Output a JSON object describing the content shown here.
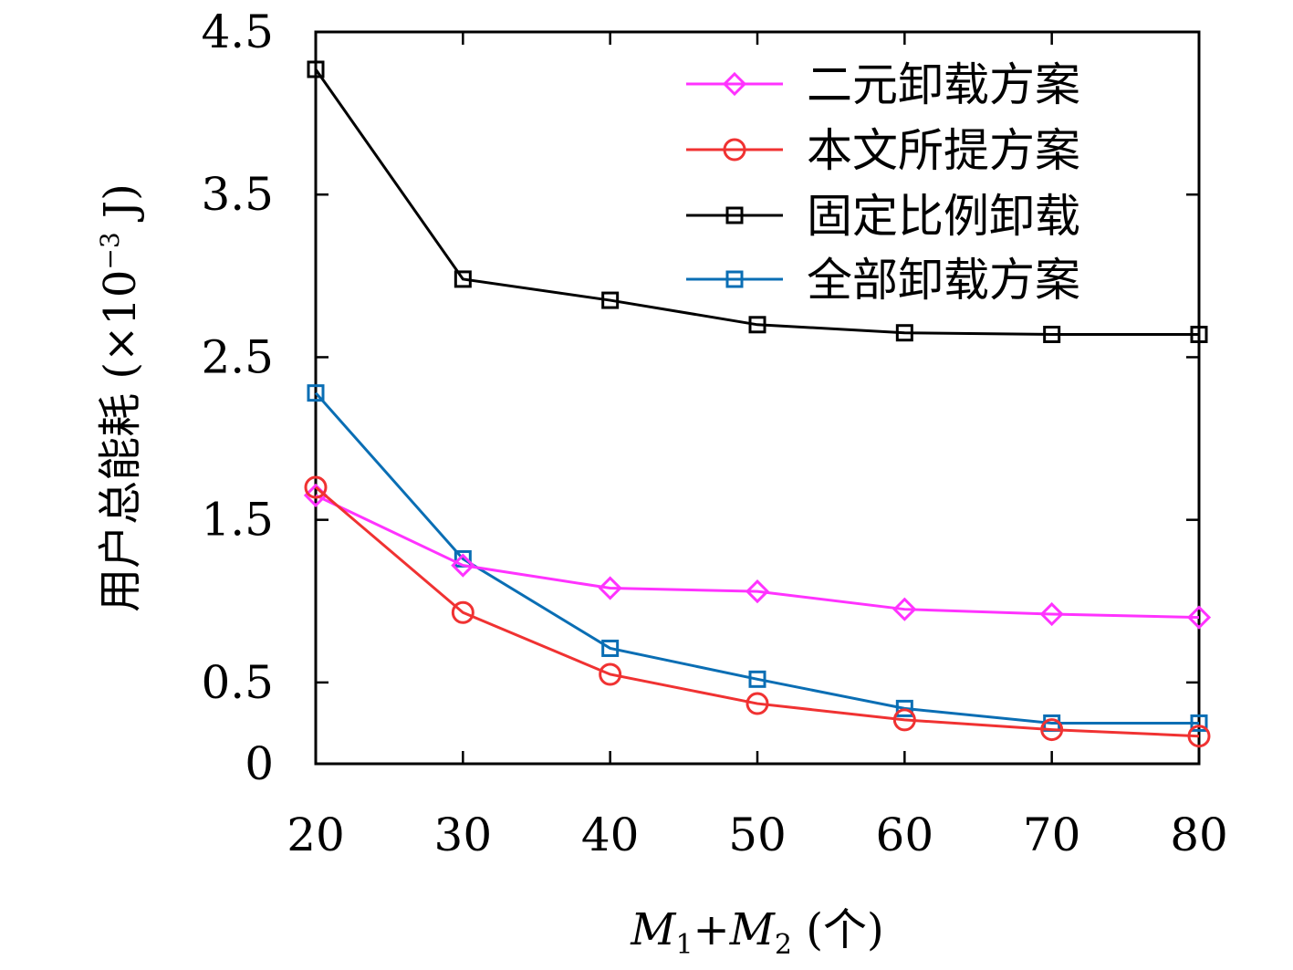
{
  "chart_data": {
    "type": "line",
    "x": [
      20,
      30,
      40,
      50,
      60,
      70,
      80
    ],
    "xticks": [
      "20",
      "30",
      "40",
      "50",
      "60",
      "70",
      "80"
    ],
    "yticks": [
      "0",
      "0.5",
      "1.5",
      "2.5",
      "3.5",
      "4.5"
    ],
    "ytick_values": [
      0,
      0.5,
      1.5,
      2.5,
      3.5,
      4.5
    ],
    "xlim": [
      20,
      80
    ],
    "ylim": [
      0,
      4.5
    ],
    "xlabel_parts": {
      "m1": "M",
      "sub1": "1",
      "plus": "+",
      "m2": "M",
      "sub2": "2",
      "unit": " (个)"
    },
    "ylabel_parts": {
      "main": "用户总能耗 (×10",
      "exp": "−3",
      "unit": " J)"
    },
    "legend_position": "top-right",
    "grid": false,
    "series": [
      {
        "name": "二元卸载方案",
        "color": "#ff33ff",
        "marker": "diamond",
        "values": [
          1.65,
          1.22,
          1.08,
          1.06,
          0.95,
          0.92,
          0.9
        ]
      },
      {
        "name": "本文所提方案",
        "color": "#f03232",
        "marker": "circle",
        "values": [
          1.7,
          0.93,
          0.55,
          0.37,
          0.27,
          0.21,
          0.17
        ]
      },
      {
        "name": "固定比例卸载",
        "color": "#000000",
        "marker": "square",
        "values": [
          4.27,
          2.98,
          2.85,
          2.7,
          2.65,
          2.64,
          2.64
        ]
      },
      {
        "name": "全部卸载方案",
        "color": "#0a6eb4",
        "marker": "square",
        "values": [
          2.28,
          1.26,
          0.71,
          0.52,
          0.34,
          0.25,
          0.25
        ]
      }
    ]
  }
}
